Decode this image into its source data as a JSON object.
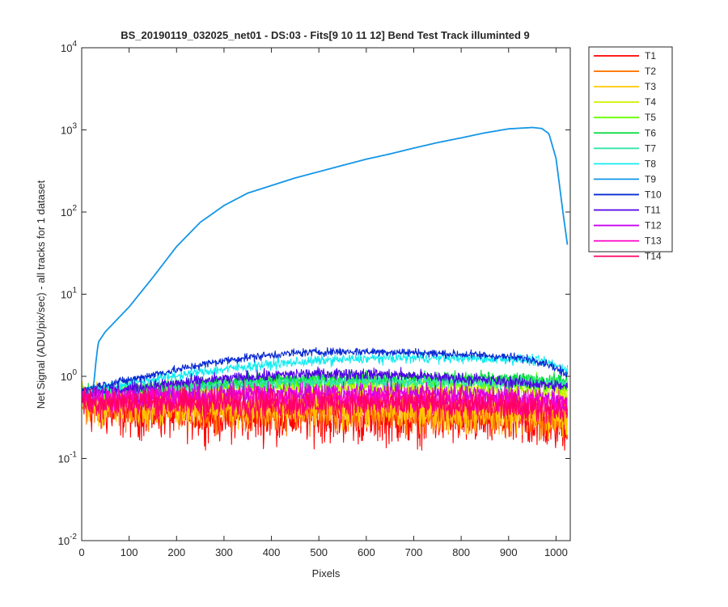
{
  "chart_data": {
    "type": "line",
    "title": "BS_20190119_032025_net01 - DS:03 - Fits[9  10  11  12]   Bend Test       Track illuminted 9",
    "xlabel": "Pixels",
    "ylabel": "Net Signal (ADU/pix/sec) - all tracks for 1 dataset",
    "xlim": [
      0,
      1030
    ],
    "ylim": [
      0.01,
      10000
    ],
    "yscale": "log",
    "xticks": [
      0,
      100,
      200,
      300,
      400,
      500,
      600,
      700,
      800,
      900,
      1000
    ],
    "xtick_labels": [
      "0",
      "100",
      "200",
      "300",
      "400",
      "500",
      "600",
      "700",
      "800",
      "900",
      "1000"
    ],
    "yticks": [
      0.01,
      0.1,
      1,
      10,
      100,
      1000,
      10000
    ],
    "ytick_labels": [
      {
        "base": "10",
        "exp": "-2"
      },
      {
        "base": "10",
        "exp": "-1"
      },
      {
        "base": "10",
        "exp": "0"
      },
      {
        "base": "10",
        "exp": "1"
      },
      {
        "base": "10",
        "exp": "2"
      },
      {
        "base": "10",
        "exp": "3"
      },
      {
        "base": "10",
        "exp": "4"
      }
    ],
    "grid": false,
    "legend_position": "outside-right-top",
    "x": [
      0,
      25,
      30,
      35,
      50,
      100,
      150,
      200,
      250,
      300,
      350,
      400,
      450,
      500,
      550,
      600,
      650,
      700,
      750,
      800,
      850,
      900,
      950,
      970,
      985,
      1000,
      1015,
      1024
    ],
    "series": [
      {
        "name": "T1",
        "color": "#ff0000",
        "noise": 0.3,
        "values": [
          0.42,
          0.4,
          0.39,
          0.38,
          0.37,
          0.37,
          0.36,
          0.35,
          0.34,
          0.33,
          0.32,
          0.32,
          0.32,
          0.32,
          0.32,
          0.31,
          0.31,
          0.3,
          0.3,
          0.29,
          0.28,
          0.28,
          0.27,
          0.26,
          0.26,
          0.25,
          0.25,
          0.25
        ]
      },
      {
        "name": "T2",
        "color": "#ff7800",
        "noise": 0.25,
        "values": [
          0.45,
          0.44,
          0.44,
          0.44,
          0.43,
          0.43,
          0.42,
          0.41,
          0.41,
          0.4,
          0.4,
          0.39,
          0.39,
          0.38,
          0.38,
          0.37,
          0.37,
          0.36,
          0.35,
          0.35,
          0.34,
          0.33,
          0.33,
          0.32,
          0.32,
          0.31,
          0.31,
          0.3
        ]
      },
      {
        "name": "T3",
        "color": "#ffc800",
        "noise": 0.25,
        "values": [
          0.47,
          0.46,
          0.46,
          0.46,
          0.46,
          0.46,
          0.45,
          0.44,
          0.44,
          0.43,
          0.43,
          0.42,
          0.42,
          0.42,
          0.41,
          0.41,
          0.4,
          0.4,
          0.39,
          0.38,
          0.38,
          0.37,
          0.36,
          0.36,
          0.35,
          0.35,
          0.34,
          0.34
        ]
      },
      {
        "name": "T4",
        "color": "#d2f000",
        "noise": 0.12,
        "values": [
          0.55,
          0.56,
          0.56,
          0.57,
          0.58,
          0.6,
          0.62,
          0.64,
          0.66,
          0.68,
          0.69,
          0.7,
          0.71,
          0.72,
          0.72,
          0.72,
          0.72,
          0.71,
          0.7,
          0.69,
          0.68,
          0.67,
          0.66,
          0.66,
          0.65,
          0.65,
          0.64,
          0.64
        ]
      },
      {
        "name": "T5",
        "color": "#64ff00",
        "noise": 0.1,
        "values": [
          0.6,
          0.62,
          0.62,
          0.63,
          0.64,
          0.66,
          0.69,
          0.72,
          0.75,
          0.78,
          0.8,
          0.82,
          0.84,
          0.85,
          0.86,
          0.86,
          0.86,
          0.85,
          0.84,
          0.83,
          0.82,
          0.81,
          0.8,
          0.8,
          0.8,
          0.79,
          0.79,
          0.78
        ]
      },
      {
        "name": "T6",
        "color": "#00dc3c",
        "noise": 0.08,
        "values": [
          0.62,
          0.64,
          0.65,
          0.66,
          0.67,
          0.7,
          0.74,
          0.78,
          0.82,
          0.85,
          0.88,
          0.91,
          0.93,
          0.95,
          0.96,
          0.97,
          0.97,
          0.96,
          0.95,
          0.94,
          0.93,
          0.92,
          0.91,
          0.91,
          0.9,
          0.9,
          0.89,
          0.88
        ]
      },
      {
        "name": "T7",
        "color": "#32e6aa",
        "noise": 0.08,
        "values": [
          0.58,
          0.6,
          0.61,
          0.62,
          0.63,
          0.66,
          0.69,
          0.72,
          0.75,
          0.78,
          0.8,
          0.82,
          0.84,
          0.85,
          0.86,
          0.87,
          0.87,
          0.86,
          0.86,
          0.85,
          0.84,
          0.84,
          0.83,
          0.83,
          0.83,
          0.82,
          0.82,
          0.81
        ]
      },
      {
        "name": "T8",
        "color": "#14ebf0",
        "noise": 0.06,
        "values": [
          0.65,
          0.68,
          0.7,
          0.72,
          0.75,
          0.82,
          0.92,
          1.02,
          1.12,
          1.22,
          1.32,
          1.4,
          1.48,
          1.55,
          1.6,
          1.64,
          1.67,
          1.68,
          1.68,
          1.67,
          1.65,
          1.62,
          1.58,
          1.52,
          1.45,
          1.35,
          1.25,
          1.2
        ]
      },
      {
        "name": "T9",
        "color": "#1496e6",
        "noise": 0,
        "values": [
          0.7,
          0.75,
          1.5,
          2.6,
          3.5,
          7.0,
          16,
          38,
          75,
          120,
          170,
          210,
          260,
          310,
          370,
          440,
          510,
          600,
          700,
          800,
          920,
          1030,
          1070,
          1040,
          900,
          450,
          95,
          40
        ]
      },
      {
        "name": "T10",
        "color": "#0a2ad2",
        "noise": 0.05,
        "values": [
          0.68,
          0.72,
          0.74,
          0.76,
          0.8,
          0.9,
          1.05,
          1.2,
          1.38,
          1.55,
          1.7,
          1.82,
          1.92,
          1.98,
          2.0,
          2.0,
          1.98,
          1.95,
          1.9,
          1.85,
          1.8,
          1.72,
          1.6,
          1.5,
          1.4,
          1.25,
          1.1,
          1.0
        ]
      },
      {
        "name": "T11",
        "color": "#5000e6",
        "noise": 0.07,
        "values": [
          0.62,
          0.64,
          0.65,
          0.66,
          0.67,
          0.7,
          0.76,
          0.82,
          0.88,
          0.93,
          0.98,
          1.02,
          1.06,
          1.08,
          1.08,
          1.07,
          1.05,
          1.02,
          0.98,
          0.94,
          0.9,
          0.86,
          0.82,
          0.8,
          0.78,
          0.77,
          0.76,
          0.75
        ]
      },
      {
        "name": "T12",
        "color": "#c800f0",
        "noise": 0.12,
        "values": [
          0.55,
          0.56,
          0.56,
          0.56,
          0.56,
          0.57,
          0.58,
          0.59,
          0.6,
          0.61,
          0.62,
          0.63,
          0.64,
          0.65,
          0.65,
          0.65,
          0.64,
          0.63,
          0.62,
          0.6,
          0.58,
          0.56,
          0.54,
          0.53,
          0.52,
          0.51,
          0.5,
          0.5
        ]
      },
      {
        "name": "T13",
        "color": "#ff00c8",
        "noise": 0.15,
        "values": [
          0.52,
          0.52,
          0.52,
          0.52,
          0.52,
          0.52,
          0.53,
          0.53,
          0.53,
          0.54,
          0.54,
          0.54,
          0.54,
          0.54,
          0.54,
          0.53,
          0.53,
          0.52,
          0.51,
          0.5,
          0.49,
          0.48,
          0.47,
          0.46,
          0.46,
          0.45,
          0.45,
          0.45
        ]
      },
      {
        "name": "T14",
        "color": "#ff0064",
        "noise": 0.18,
        "values": [
          0.48,
          0.48,
          0.48,
          0.48,
          0.48,
          0.48,
          0.48,
          0.47,
          0.47,
          0.47,
          0.47,
          0.47,
          0.47,
          0.47,
          0.46,
          0.46,
          0.46,
          0.45,
          0.45,
          0.44,
          0.43,
          0.42,
          0.41,
          0.41,
          0.4,
          0.4,
          0.4,
          0.4
        ]
      }
    ]
  }
}
